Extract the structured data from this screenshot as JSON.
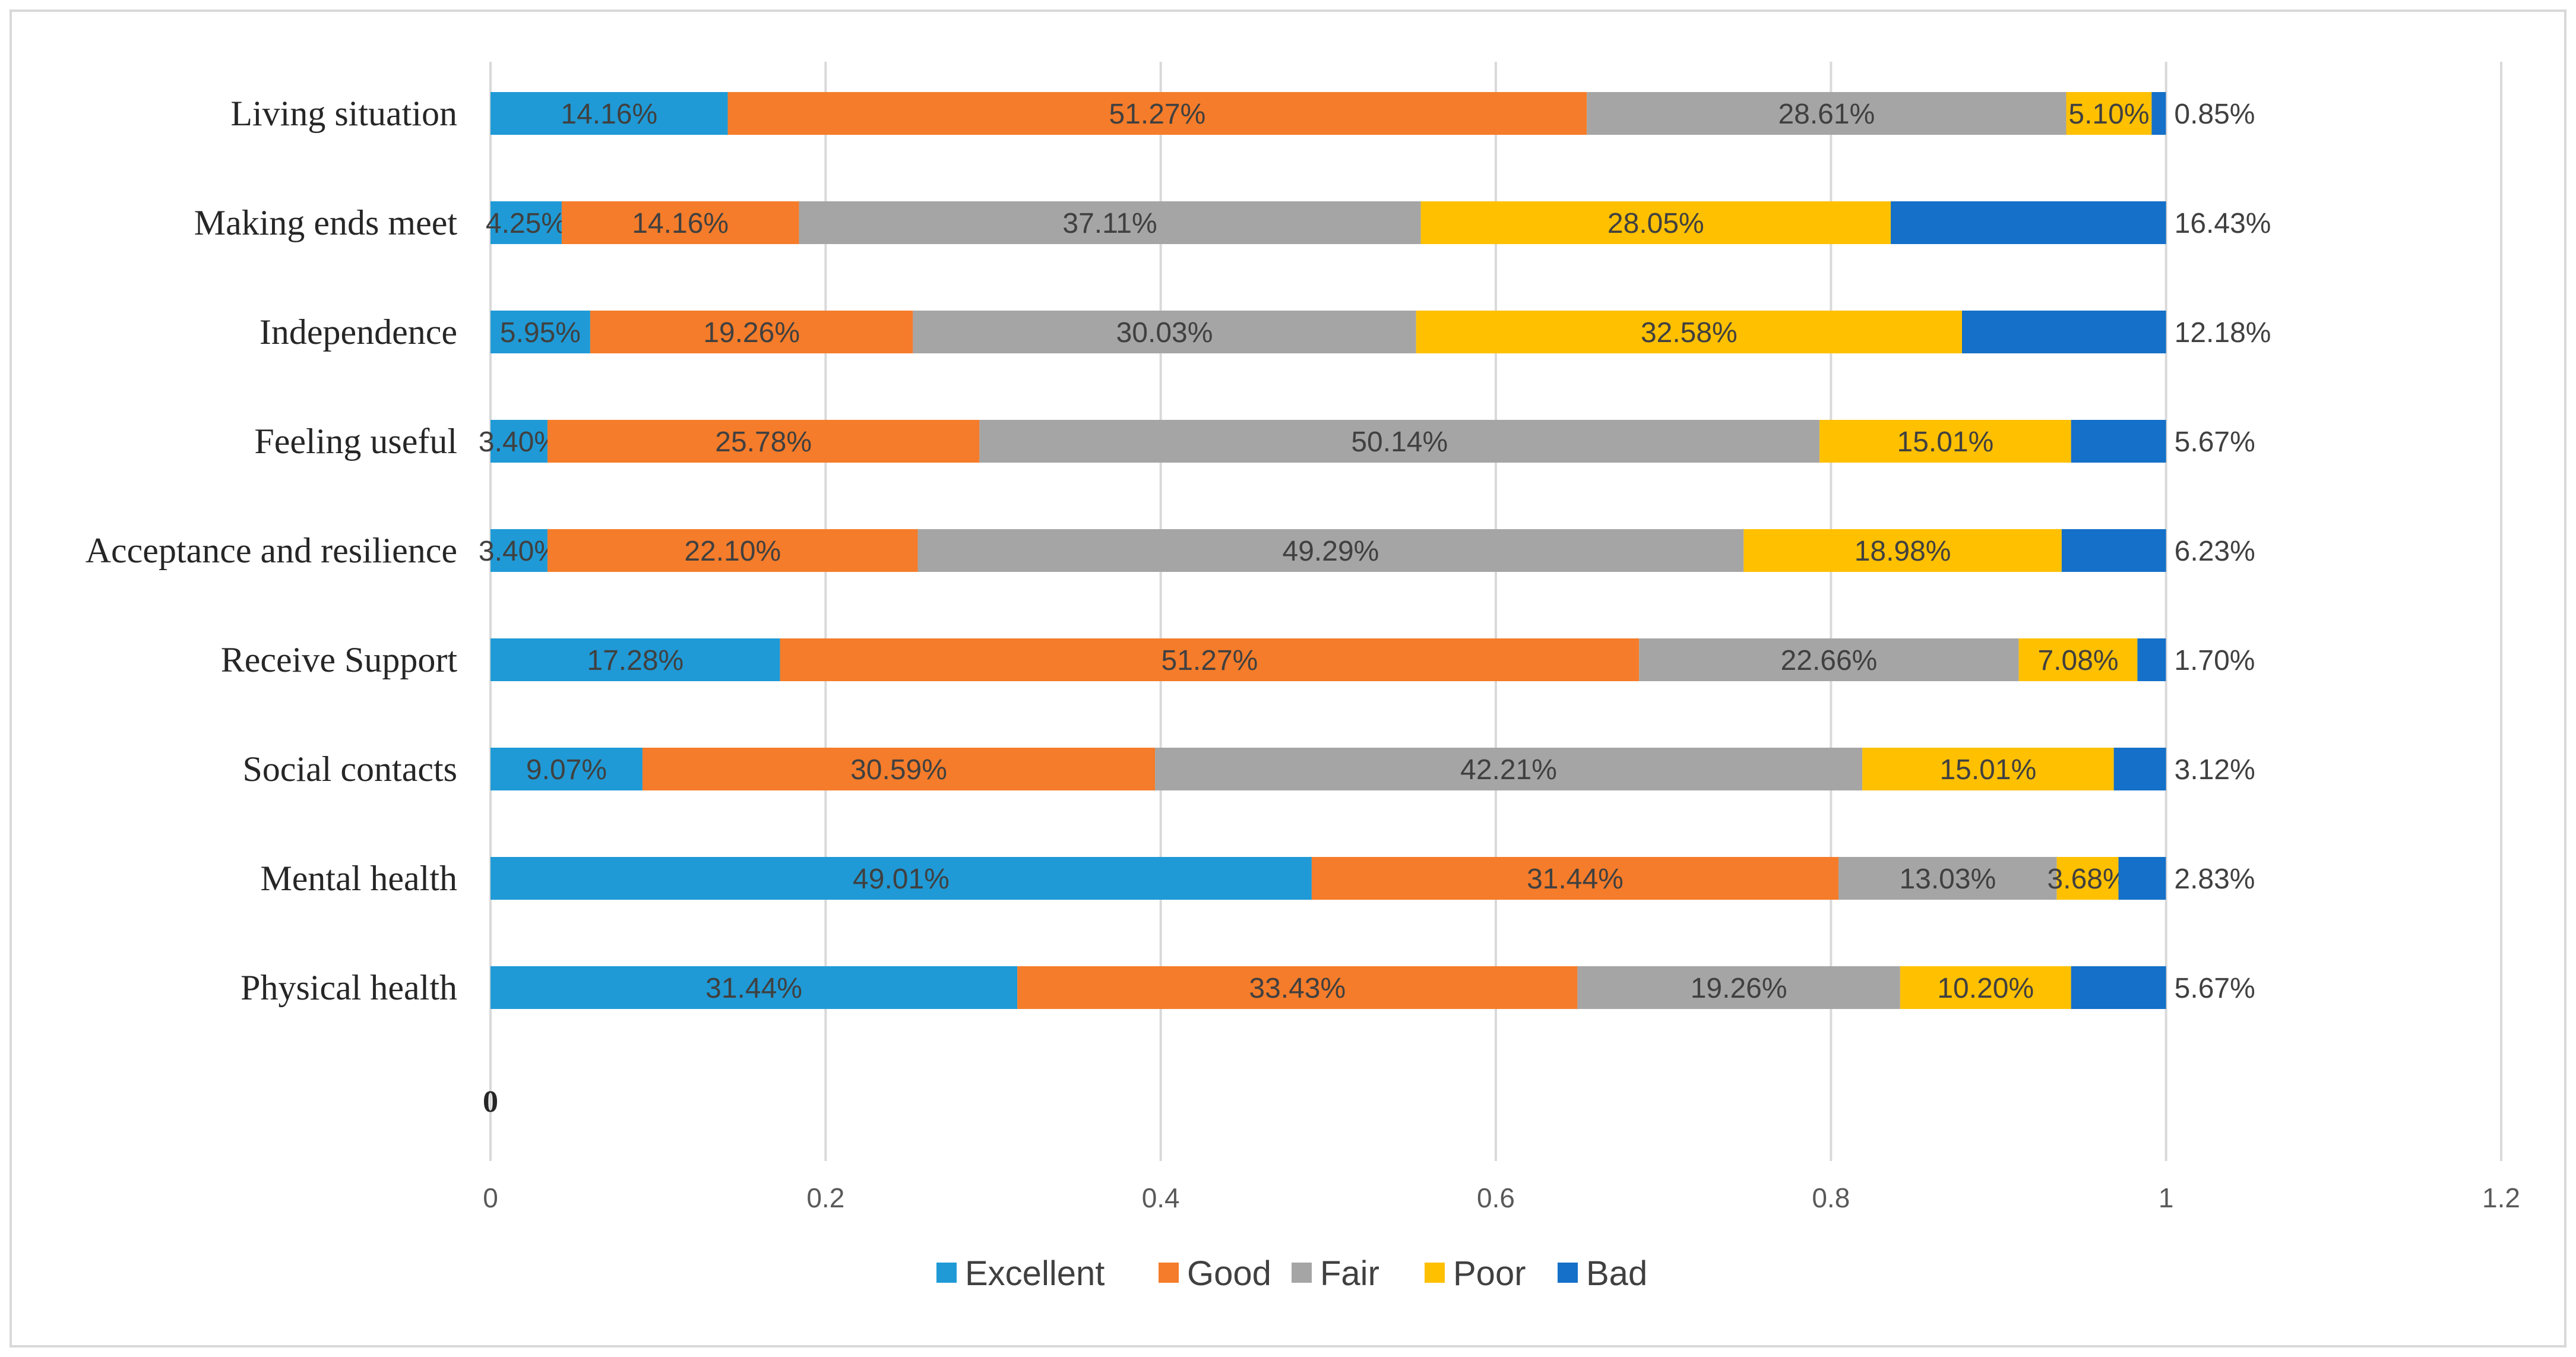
{
  "chart_data": {
    "type": "bar",
    "orientation": "horizontal",
    "stacked": true,
    "title": "",
    "xlabel": "",
    "ylabel": "",
    "xlim": [
      0,
      1.2
    ],
    "x_ticks": [
      "0",
      "0.2",
      "0.4",
      "0.6",
      "0.8",
      "1",
      "1.2"
    ],
    "grid": true,
    "legend_position": "bottom",
    "stray_axis_label": "0",
    "categories": [
      "Living situation",
      "Making ends meet",
      "Independence",
      "Feeling useful",
      "Acceptance and resilience",
      "Receive Support",
      "Social contacts",
      "Mental health",
      "Physical health"
    ],
    "series": [
      {
        "name": "Excellent",
        "color": "#1f9ad6",
        "values": [
          0.1416,
          0.0425,
          0.0595,
          0.034,
          0.034,
          0.1728,
          0.0907,
          0.4901,
          0.3144
        ],
        "labels": [
          "14.16%",
          "4.25%",
          "5.95%",
          "3.40%",
          "3.40%",
          "17.28%",
          "9.07%",
          "49.01%",
          "31.44%"
        ]
      },
      {
        "name": "Good",
        "color": "#f57c2a",
        "values": [
          0.5127,
          0.1416,
          0.1926,
          0.2578,
          0.221,
          0.5127,
          0.3059,
          0.3144,
          0.3343
        ],
        "labels": [
          "51.27%",
          "14.16%",
          "19.26%",
          "25.78%",
          "22.10%",
          "51.27%",
          "30.59%",
          "31.44%",
          "33.43%"
        ]
      },
      {
        "name": "Fair",
        "color": "#a5a5a5",
        "values": [
          0.2861,
          0.3711,
          0.3003,
          0.5014,
          0.4929,
          0.2266,
          0.4221,
          0.1303,
          0.1926
        ],
        "labels": [
          "28.61%",
          "37.11%",
          "30.03%",
          "50.14%",
          "49.29%",
          "22.66%",
          "42.21%",
          "13.03%",
          "19.26%"
        ]
      },
      {
        "name": "Poor",
        "color": "#ffc000",
        "values": [
          0.051,
          0.2805,
          0.3258,
          0.1501,
          0.1898,
          0.0708,
          0.1501,
          0.0368,
          0.102
        ],
        "labels": [
          "5.10%",
          "28.05%",
          "32.58%",
          "15.01%",
          "18.98%",
          "7.08%",
          "15.01%",
          "3.68%",
          "10.20%"
        ]
      },
      {
        "name": "Bad",
        "color": "#1470c8",
        "values": [
          0.0085,
          0.1643,
          0.1218,
          0.0567,
          0.0623,
          0.017,
          0.0312,
          0.0283,
          0.0567
        ],
        "labels": [
          "0.85%",
          "16.43%",
          "12.18%",
          "5.67%",
          "6.23%",
          "1.70%",
          "3.12%",
          "2.83%",
          "5.67%"
        ]
      }
    ]
  }
}
